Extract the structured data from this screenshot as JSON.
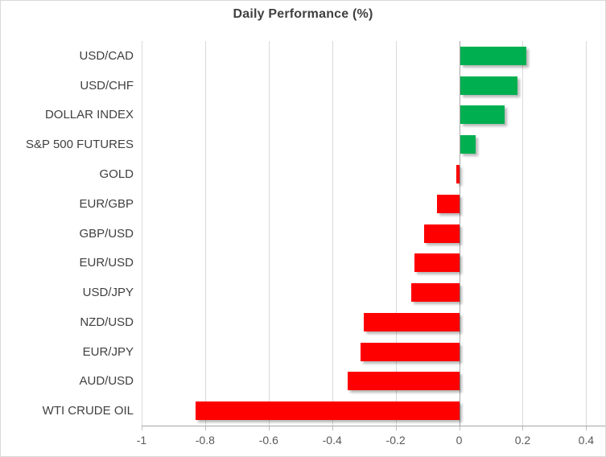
{
  "chart_data": {
    "type": "bar",
    "orientation": "horizontal",
    "title": "Daily Performance (%)",
    "categories": [
      "USD/CAD",
      "USD/CHF",
      "DOLLAR INDEX",
      "S&P 500 FUTURES",
      "GOLD",
      "EUR/GBP",
      "GBP/USD",
      "EUR/USD",
      "USD/JPY",
      "NZD/USD",
      "EUR/JPY",
      "AUD/USD",
      "WTI CRUDE OIL"
    ],
    "values": [
      0.21,
      0.18,
      0.14,
      0.05,
      -0.01,
      -0.07,
      -0.11,
      -0.14,
      -0.15,
      -0.3,
      -0.31,
      -0.35,
      -0.83
    ],
    "xlim": [
      -1,
      0.4
    ],
    "xticks": [
      -1,
      -0.8,
      -0.6,
      -0.4,
      -0.2,
      0,
      0.2,
      0.4
    ],
    "tick_labels": [
      "-1",
      "-0.8",
      "-0.6",
      "-0.4",
      "-0.2",
      "0",
      "0.2",
      "0.4"
    ],
    "grid": true,
    "legend": "none",
    "positive_color": "#00B050",
    "negative_color": "#FF0000",
    "gridline_color": "#D9D9D9",
    "axis_line_color": "#A6A6A6",
    "title_color": "#404040",
    "category_label_color": "#404040",
    "tick_label_color": "#595959"
  }
}
